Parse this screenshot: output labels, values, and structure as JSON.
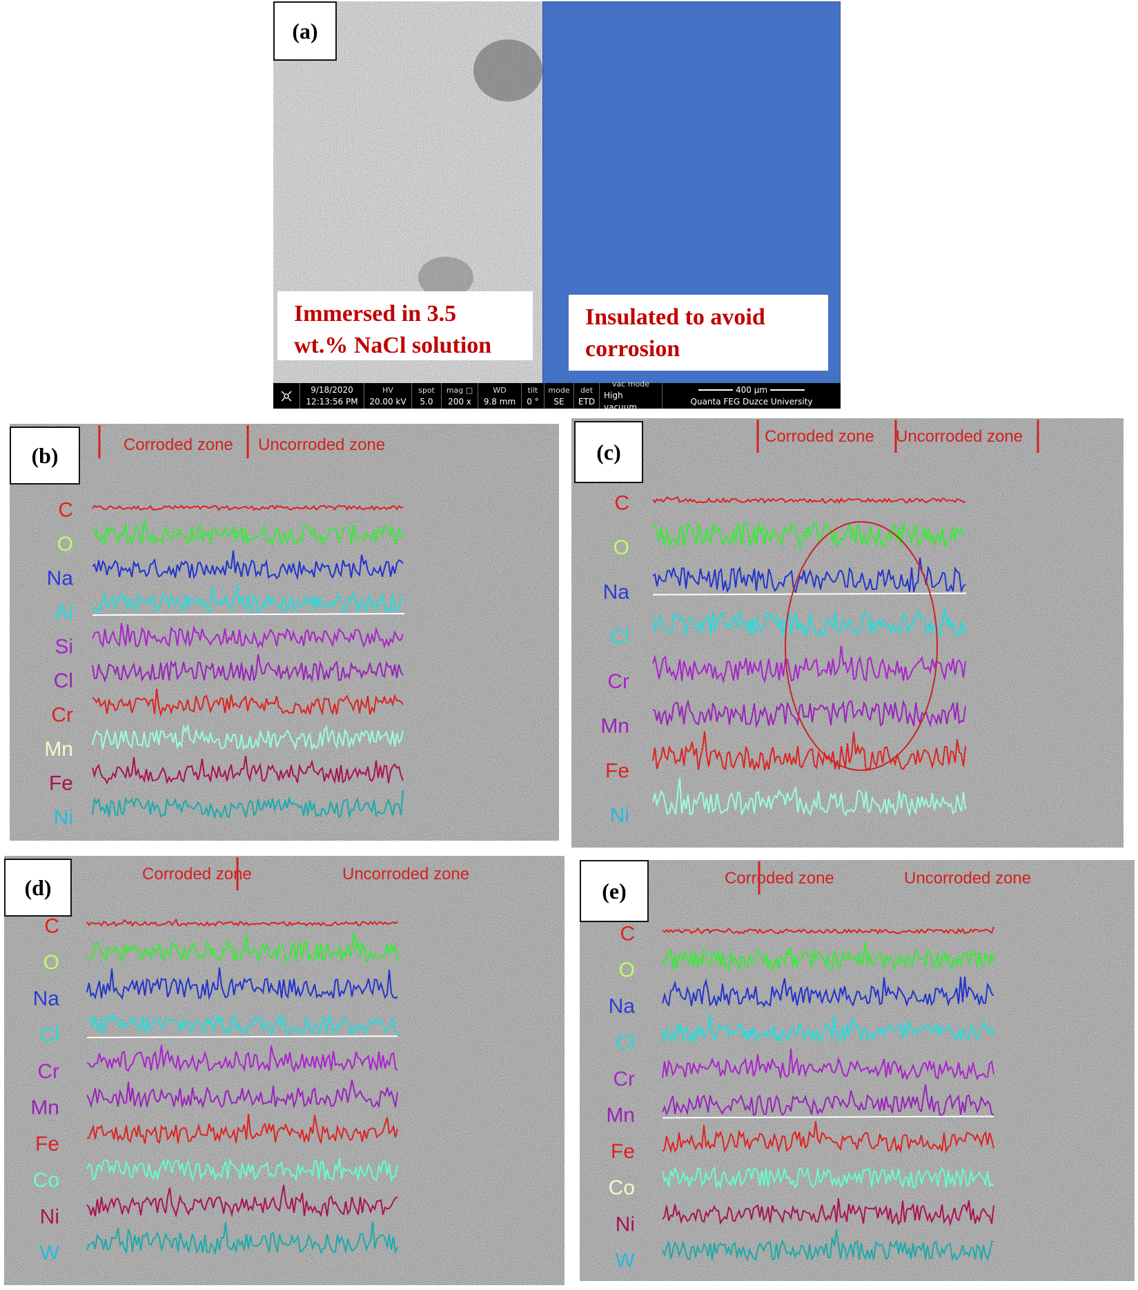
{
  "panel_a": {
    "label": "(a)",
    "left_note_line1": "Immersed in 3.5",
    "left_note_line2": "wt.% NaCl solution",
    "right_note_line1": "Insulated to avoid",
    "right_note_line2": "corrosion",
    "databar": {
      "date": "9/18/2020",
      "time": "12:13:56 PM",
      "hv_label": "HV",
      "hv": "20.00 kV",
      "spot_label": "spot",
      "spot": "5.0",
      "mag_label": "mag □",
      "mag": "200 x",
      "wd_label": "WD",
      "wd": "9.8 mm",
      "tilt_label": "tilt",
      "tilt": "0 °",
      "mode_label": "mode",
      "mode": "SE",
      "det_label": "det",
      "det": "ETD",
      "vac_label": "vac mode",
      "vac": "High vacuum",
      "scale": "400 µm",
      "instrument": "Quanta FEG Duzce University"
    }
  },
  "zone_labels": {
    "corroded": "Corroded zone",
    "uncorroded": "Uncorroded zone"
  },
  "element_colors": {
    "C": "#e02020",
    "O": "#33ee33",
    "Na": "#2233cc",
    "Al": "#22dddd",
    "Si": "#aa22cc",
    "Cl": "#22dddd",
    "Cr": "#dd2222",
    "Mn": "#99ffcc",
    "Fe": "#aa1155",
    "Ni": "#1aaaaa",
    "Co": "#66ffcc",
    "W": "#1aaaaa"
  },
  "panels": [
    {
      "id": "b",
      "label": "(b)",
      "elements": [
        {
          "name": "C",
          "color": "#e02020"
        },
        {
          "name": "O",
          "color": "#bbff66"
        },
        {
          "name": "Na",
          "color": "#2a3bd8"
        },
        {
          "name": "Al",
          "color": "#22dddd"
        },
        {
          "name": "Si",
          "color": "#aa22cc"
        },
        {
          "name": "Cl",
          "color": "#9922bb"
        },
        {
          "name": "Cr",
          "color": "#dd2222"
        },
        {
          "name": "Mn",
          "color": "#eeffcc"
        },
        {
          "name": "Fe",
          "color": "#aa1155"
        },
        {
          "name": "Ni",
          "color": "#22bbdd"
        }
      ],
      "line_colors": [
        "#e02020",
        "#33ee33",
        "#2233cc",
        "#22dddd",
        "#aa22cc",
        "#9922bb",
        "#dd2222",
        "#99ffdd",
        "#aa1155",
        "#1aaaaa"
      ],
      "white_line_index": 3
    },
    {
      "id": "c",
      "label": "(c)",
      "elements": [
        {
          "name": "C",
          "color": "#e02020"
        },
        {
          "name": "O",
          "color": "#bbff66"
        },
        {
          "name": "Na",
          "color": "#2a3bd8"
        },
        {
          "name": "Cl",
          "color": "#22dddd"
        },
        {
          "name": "Cr",
          "color": "#aa22cc"
        },
        {
          "name": "Mn",
          "color": "#9922bb"
        },
        {
          "name": "Fe",
          "color": "#dd2222"
        },
        {
          "name": "Ni",
          "color": "#22bbdd"
        }
      ],
      "line_colors": [
        "#e02020",
        "#33ee33",
        "#2233cc",
        "#22dddd",
        "#aa22cc",
        "#9922bb",
        "#dd2222",
        "#99ffdd"
      ],
      "white_line_index": 2
    },
    {
      "id": "d",
      "label": "(d)",
      "elements": [
        {
          "name": "C",
          "color": "#e02020"
        },
        {
          "name": "O",
          "color": "#bbff66"
        },
        {
          "name": "Na",
          "color": "#2a3bd8"
        },
        {
          "name": "Cl",
          "color": "#22dddd"
        },
        {
          "name": "Cr",
          "color": "#aa22cc"
        },
        {
          "name": "Mn",
          "color": "#9922bb"
        },
        {
          "name": "Fe",
          "color": "#dd2222"
        },
        {
          "name": "Co",
          "color": "#66ffcc"
        },
        {
          "name": "Ni",
          "color": "#aa1155"
        },
        {
          "name": "W",
          "color": "#22bbdd"
        }
      ],
      "line_colors": [
        "#e02020",
        "#33ee33",
        "#2233cc",
        "#22dddd",
        "#aa22cc",
        "#9922bb",
        "#dd2222",
        "#66ffcc",
        "#aa1155",
        "#1aaaaa"
      ],
      "white_line_index": 3
    },
    {
      "id": "e",
      "label": "(e)",
      "elements": [
        {
          "name": "C",
          "color": "#e02020"
        },
        {
          "name": "O",
          "color": "#bbff66"
        },
        {
          "name": "Na",
          "color": "#2a3bd8"
        },
        {
          "name": "Cl",
          "color": "#22dddd"
        },
        {
          "name": "Cr",
          "color": "#aa22cc"
        },
        {
          "name": "Mn",
          "color": "#9922bb"
        },
        {
          "name": "Fe",
          "color": "#dd2222"
        },
        {
          "name": "Co",
          "color": "#eeffcc"
        },
        {
          "name": "Ni",
          "color": "#aa1155"
        },
        {
          "name": "W",
          "color": "#22bbdd"
        }
      ],
      "line_colors": [
        "#e02020",
        "#33ee33",
        "#2233cc",
        "#22dddd",
        "#aa22cc",
        "#9922bb",
        "#dd2222",
        "#66ffcc",
        "#aa1155",
        "#1aaaaa"
      ],
      "white_line_index": 5
    }
  ]
}
